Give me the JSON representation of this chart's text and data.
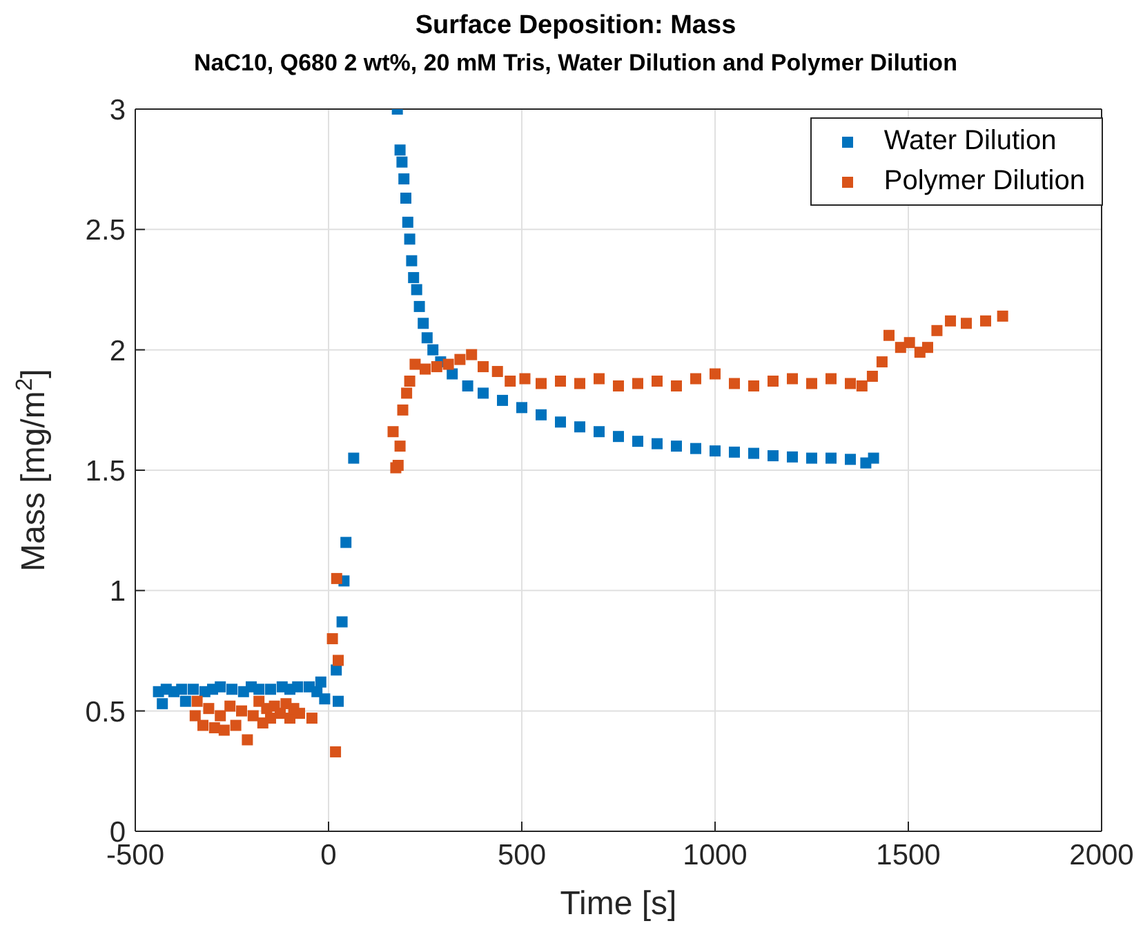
{
  "chart_data": {
    "type": "scatter",
    "title": "Surface Deposition: Mass",
    "subtitle": "NaC10, Q680 2 wt%, 20 mM Tris, Water Dilution and Polymer Dilution",
    "xlabel": "Time [s]",
    "ylabel": "Mass [mg/m$^{2}$]",
    "xlim": [
      -500,
      2000
    ],
    "xticks": [
      -500,
      0,
      500,
      1000,
      1500,
      2000
    ],
    "ylim": [
      0,
      3
    ],
    "yticks": [
      0,
      0.5,
      1,
      1.5,
      2,
      2.5,
      3
    ],
    "grid": true,
    "legend": "top right",
    "marker": "square",
    "series": [
      {
        "name": "Water Dilution",
        "color": "#0072bd",
        "x": [
          -440,
          -430,
          -420,
          -400,
          -380,
          -370,
          -350,
          -320,
          -300,
          -280,
          -250,
          -220,
          -200,
          -180,
          -150,
          -120,
          -100,
          -80,
          -50,
          -30,
          -20,
          -10,
          20,
          25,
          35,
          40,
          45,
          65,
          178,
          185,
          190,
          195,
          200,
          205,
          210,
          215,
          220,
          228,
          235,
          245,
          255,
          270,
          290,
          320,
          360,
          400,
          450,
          500,
          550,
          600,
          650,
          700,
          750,
          800,
          850,
          900,
          950,
          1000,
          1050,
          1100,
          1150,
          1200,
          1250,
          1300,
          1350,
          1390,
          1410
        ],
        "values": [
          0.58,
          0.53,
          0.59,
          0.58,
          0.59,
          0.54,
          0.59,
          0.58,
          0.59,
          0.6,
          0.59,
          0.58,
          0.6,
          0.59,
          0.59,
          0.6,
          0.59,
          0.6,
          0.6,
          0.58,
          0.62,
          0.55,
          0.67,
          0.54,
          0.87,
          1.04,
          1.2,
          1.55,
          3.0,
          2.83,
          2.78,
          2.71,
          2.63,
          2.53,
          2.46,
          2.37,
          2.3,
          2.25,
          2.18,
          2.11,
          2.05,
          2.0,
          1.95,
          1.9,
          1.85,
          1.82,
          1.79,
          1.76,
          1.73,
          1.7,
          1.68,
          1.66,
          1.64,
          1.62,
          1.61,
          1.6,
          1.59,
          1.58,
          1.575,
          1.57,
          1.56,
          1.555,
          1.55,
          1.55,
          1.545,
          1.53,
          1.55
        ]
      },
      {
        "name": "Polymer Dilution",
        "color": "#d95319",
        "x": [
          -345,
          -340,
          -325,
          -310,
          -295,
          -280,
          -270,
          -255,
          -240,
          -225,
          -210,
          -195,
          -180,
          -170,
          -160,
          -150,
          -140,
          -125,
          -110,
          -100,
          -90,
          -75,
          -43,
          10,
          18,
          21,
          25,
          167,
          174,
          180,
          185,
          192,
          202,
          210,
          224,
          250,
          280,
          310,
          340,
          370,
          400,
          437,
          470,
          508,
          550,
          600,
          650,
          700,
          750,
          800,
          850,
          900,
          950,
          1000,
          1050,
          1100,
          1150,
          1200,
          1250,
          1300,
          1350,
          1380,
          1407,
          1432,
          1450,
          1480,
          1503,
          1530,
          1550,
          1574,
          1609,
          1650,
          1700,
          1744
        ],
        "values": [
          0.48,
          0.54,
          0.44,
          0.51,
          0.43,
          0.48,
          0.42,
          0.52,
          0.44,
          0.5,
          0.38,
          0.48,
          0.54,
          0.45,
          0.51,
          0.47,
          0.52,
          0.49,
          0.53,
          0.47,
          0.51,
          0.49,
          0.47,
          0.8,
          0.33,
          1.05,
          0.71,
          1.66,
          1.51,
          1.52,
          1.6,
          1.75,
          1.82,
          1.87,
          1.94,
          1.92,
          1.93,
          1.94,
          1.96,
          1.98,
          1.93,
          1.91,
          1.87,
          1.88,
          1.86,
          1.87,
          1.86,
          1.88,
          1.85,
          1.86,
          1.87,
          1.85,
          1.88,
          1.9,
          1.86,
          1.85,
          1.87,
          1.88,
          1.86,
          1.88,
          1.86,
          1.85,
          1.89,
          1.95,
          2.06,
          2.01,
          2.03,
          1.99,
          2.01,
          2.08,
          2.12,
          2.11,
          2.12,
          2.14
        ]
      }
    ]
  }
}
